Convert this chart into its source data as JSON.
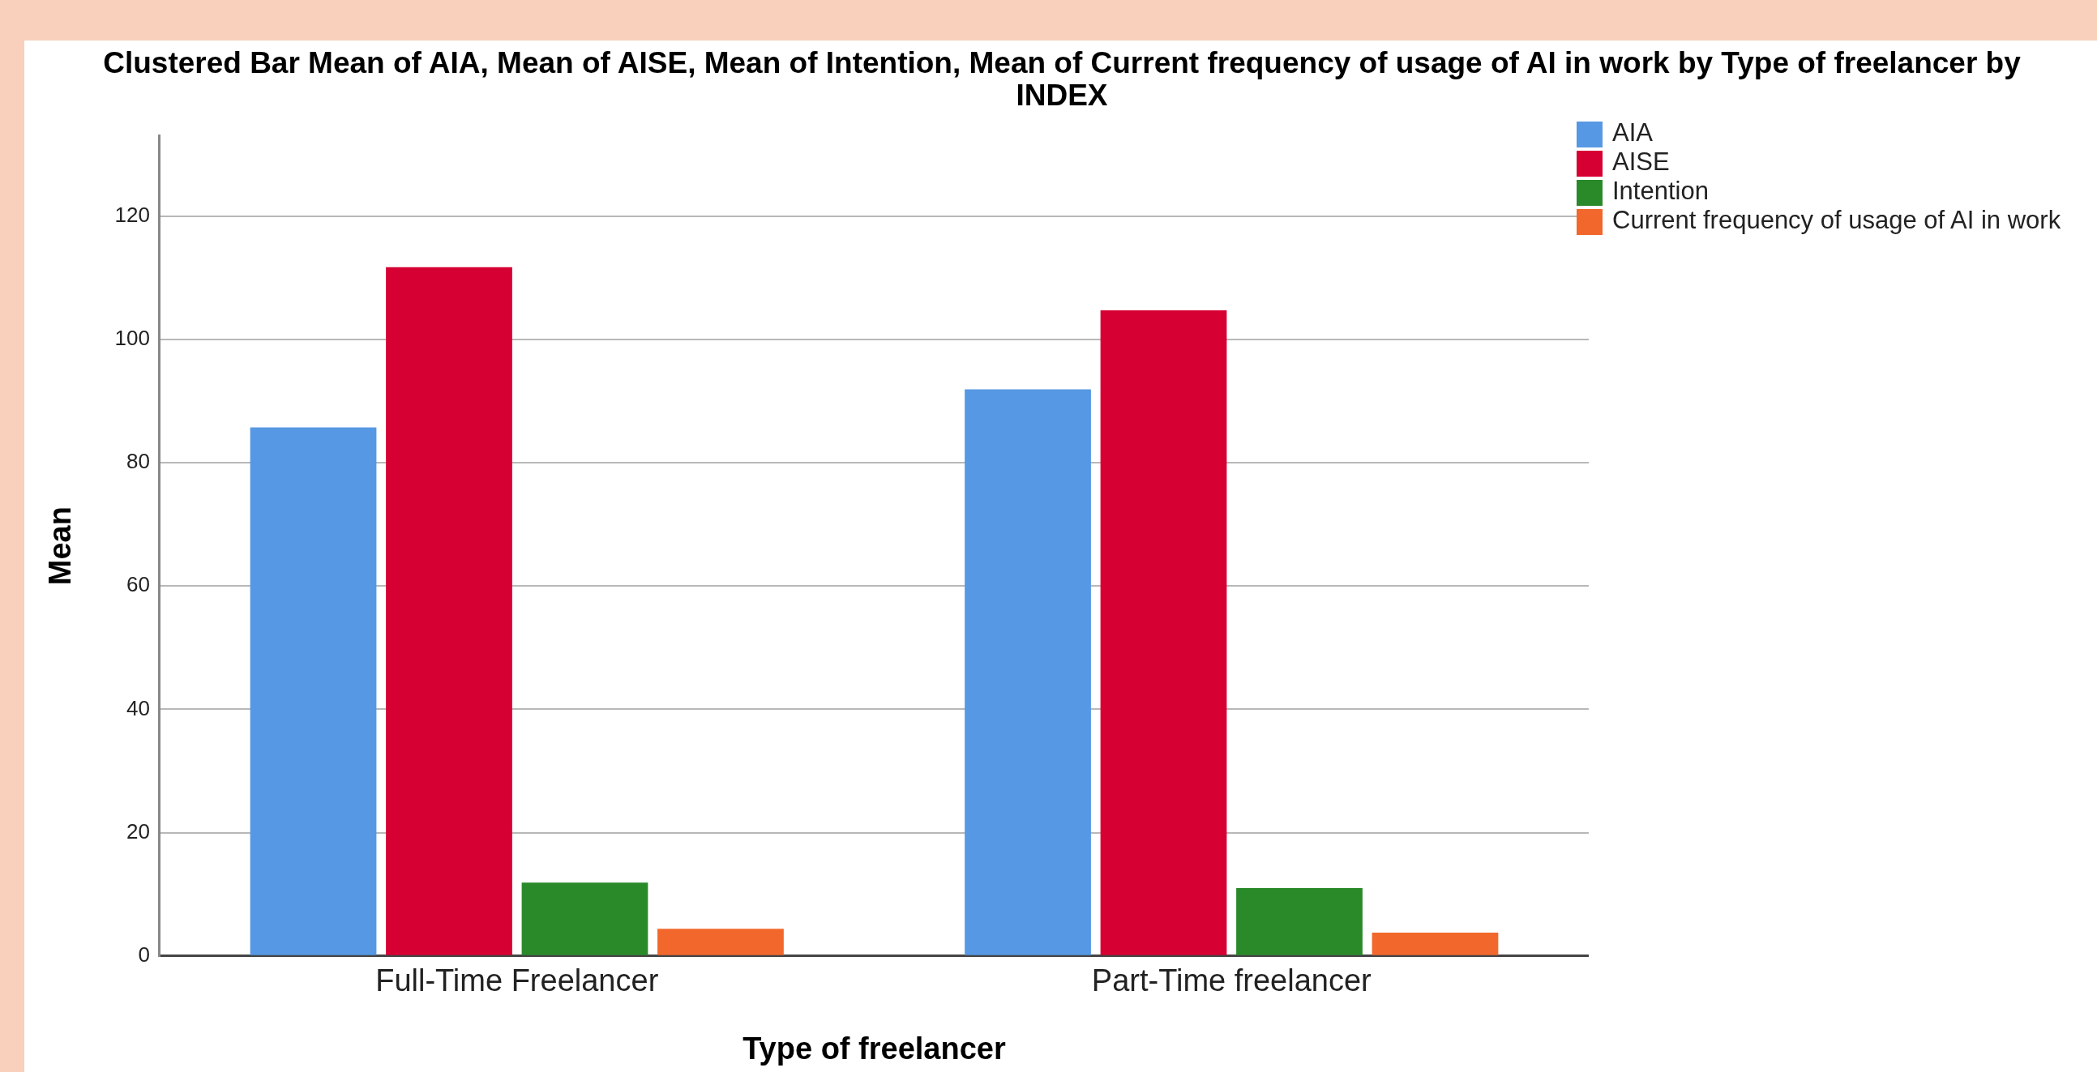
{
  "chart_data": {
    "type": "bar",
    "title": "Clustered Bar Mean of AIA, Mean of AISE, Mean of Intention, Mean of Current frequency of usage of AI in work by Type of freelancer by INDEX",
    "xlabel": "Type of freelancer",
    "ylabel": "Mean",
    "categories": [
      "Full-Time Freelancer",
      "Part-Time freelancer"
    ],
    "series": [
      {
        "name": "AIA",
        "color": "#5698e3",
        "values": [
          85.7,
          91.9
        ]
      },
      {
        "name": "AISE",
        "color": "#d60032",
        "values": [
          111.7,
          104.7
        ]
      },
      {
        "name": "Intention",
        "color": "#2a8a2a",
        "values": [
          11.9,
          11.0
        ]
      },
      {
        "name": "Current frequency of usage of AI in work",
        "color": "#f2682c",
        "values": [
          4.4,
          3.8
        ]
      }
    ],
    "ylim": [
      0,
      133
    ],
    "yticks": [
      0,
      20,
      40,
      60,
      80,
      100,
      120
    ],
    "grid": "y",
    "legend": "top right"
  }
}
